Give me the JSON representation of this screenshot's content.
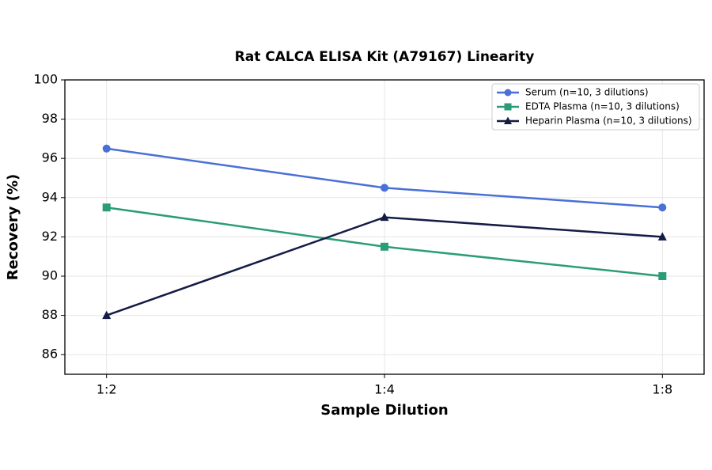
{
  "chart_data": {
    "type": "line",
    "title": "Rat CALCA ELISA Kit (A79167) Linearity",
    "x_label": "Sample Dilution",
    "y_label": "Recovery (%)",
    "categories": [
      "1:2",
      "1:4",
      "1:8"
    ],
    "series": [
      {
        "name": "Serum (n=10, 3 dilutions)",
        "color": "#4a6fd6",
        "marker": "circle",
        "values": [
          96.5,
          94.5,
          93.5
        ]
      },
      {
        "name": "EDTA Plasma (n=10, 3 dilutions)",
        "color": "#2a9d78",
        "marker": "square",
        "values": [
          93.5,
          91.5,
          90
        ]
      },
      {
        "name": "Heparin Plasma (n=10, 3 dilutions)",
        "color": "#141c45",
        "marker": "triangle",
        "values": [
          88,
          93,
          92
        ]
      }
    ],
    "ylim": [
      85,
      100
    ],
    "yticks": [
      86,
      88,
      90,
      92,
      94,
      96,
      98,
      100
    ],
    "grid": true,
    "legend": "upper right"
  }
}
